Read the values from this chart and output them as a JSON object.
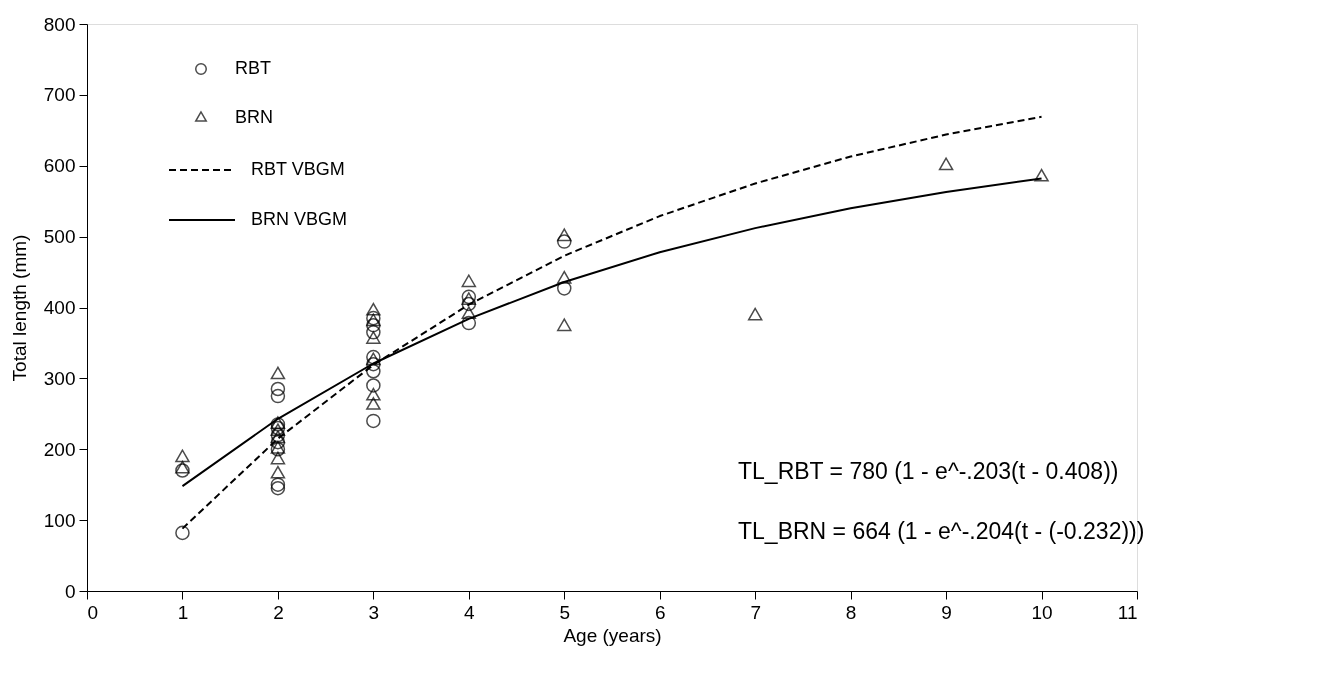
{
  "chart_data": {
    "type": "scatter",
    "xlabel": "Age (years)",
    "ylabel": "Total length (mm)",
    "xlim": [
      0,
      11
    ],
    "xticks": [
      0,
      1,
      2,
      3,
      4,
      5,
      6,
      7,
      8,
      9,
      10,
      11
    ],
    "ylim": [
      0,
      800
    ],
    "yticks": [
      0,
      100,
      200,
      300,
      400,
      500,
      600,
      700,
      800
    ],
    "grid": false,
    "legend": "top left",
    "series": [
      {
        "name": "RBT",
        "type": "scatter",
        "marker": "circle",
        "color": "#000000",
        "x": [
          1,
          1,
          2,
          2,
          2,
          2,
          2,
          2,
          2,
          2,
          2,
          3,
          3,
          3,
          3,
          3,
          3,
          3,
          3,
          4,
          4,
          4,
          5,
          5
        ],
        "values": [
          82,
          170,
          145,
          150,
          200,
          210,
          220,
          230,
          235,
          275,
          285,
          240,
          290,
          310,
          320,
          330,
          365,
          375,
          385,
          378,
          405,
          415,
          427,
          493
        ]
      },
      {
        "name": "BRN",
        "type": "scatter",
        "marker": "triangle",
        "color": "#000000",
        "x": [
          1,
          1,
          2,
          2,
          2,
          2,
          2,
          2,
          2,
          3,
          3,
          3,
          3,
          3,
          3,
          4,
          4,
          4,
          5,
          5,
          5,
          7,
          9,
          10
        ],
        "values": [
          172,
          188,
          165,
          185,
          200,
          215,
          225,
          235,
          305,
          262,
          275,
          325,
          355,
          380,
          395,
          390,
          410,
          435,
          373,
          440,
          500,
          388,
          600,
          584
        ]
      },
      {
        "name": "RBT VBGM",
        "type": "line",
        "marker": "none",
        "line_style": "dashed",
        "color": "#000000",
        "x": [
          1,
          2,
          3,
          4,
          5,
          6,
          7,
          8,
          9,
          10
        ],
        "values": [
          88,
          215,
          319,
          404,
          473,
          529,
          575,
          613,
          644,
          669
        ]
      },
      {
        "name": "BRN VBGM",
        "type": "line",
        "marker": "none",
        "line_style": "solid",
        "color": "#000000",
        "x": [
          1,
          2,
          3,
          4,
          5,
          6,
          7,
          8,
          9,
          10
        ],
        "values": [
          148,
          243,
          321,
          384,
          436,
          478,
          512,
          540,
          563,
          582
        ]
      }
    ],
    "annotations": [
      "TL_RBT = 780 (1 - e^-.203(t - 0.408))",
      "TL_BRN = 664 (1 - e^-.204(t - (-0.232)))"
    ]
  }
}
